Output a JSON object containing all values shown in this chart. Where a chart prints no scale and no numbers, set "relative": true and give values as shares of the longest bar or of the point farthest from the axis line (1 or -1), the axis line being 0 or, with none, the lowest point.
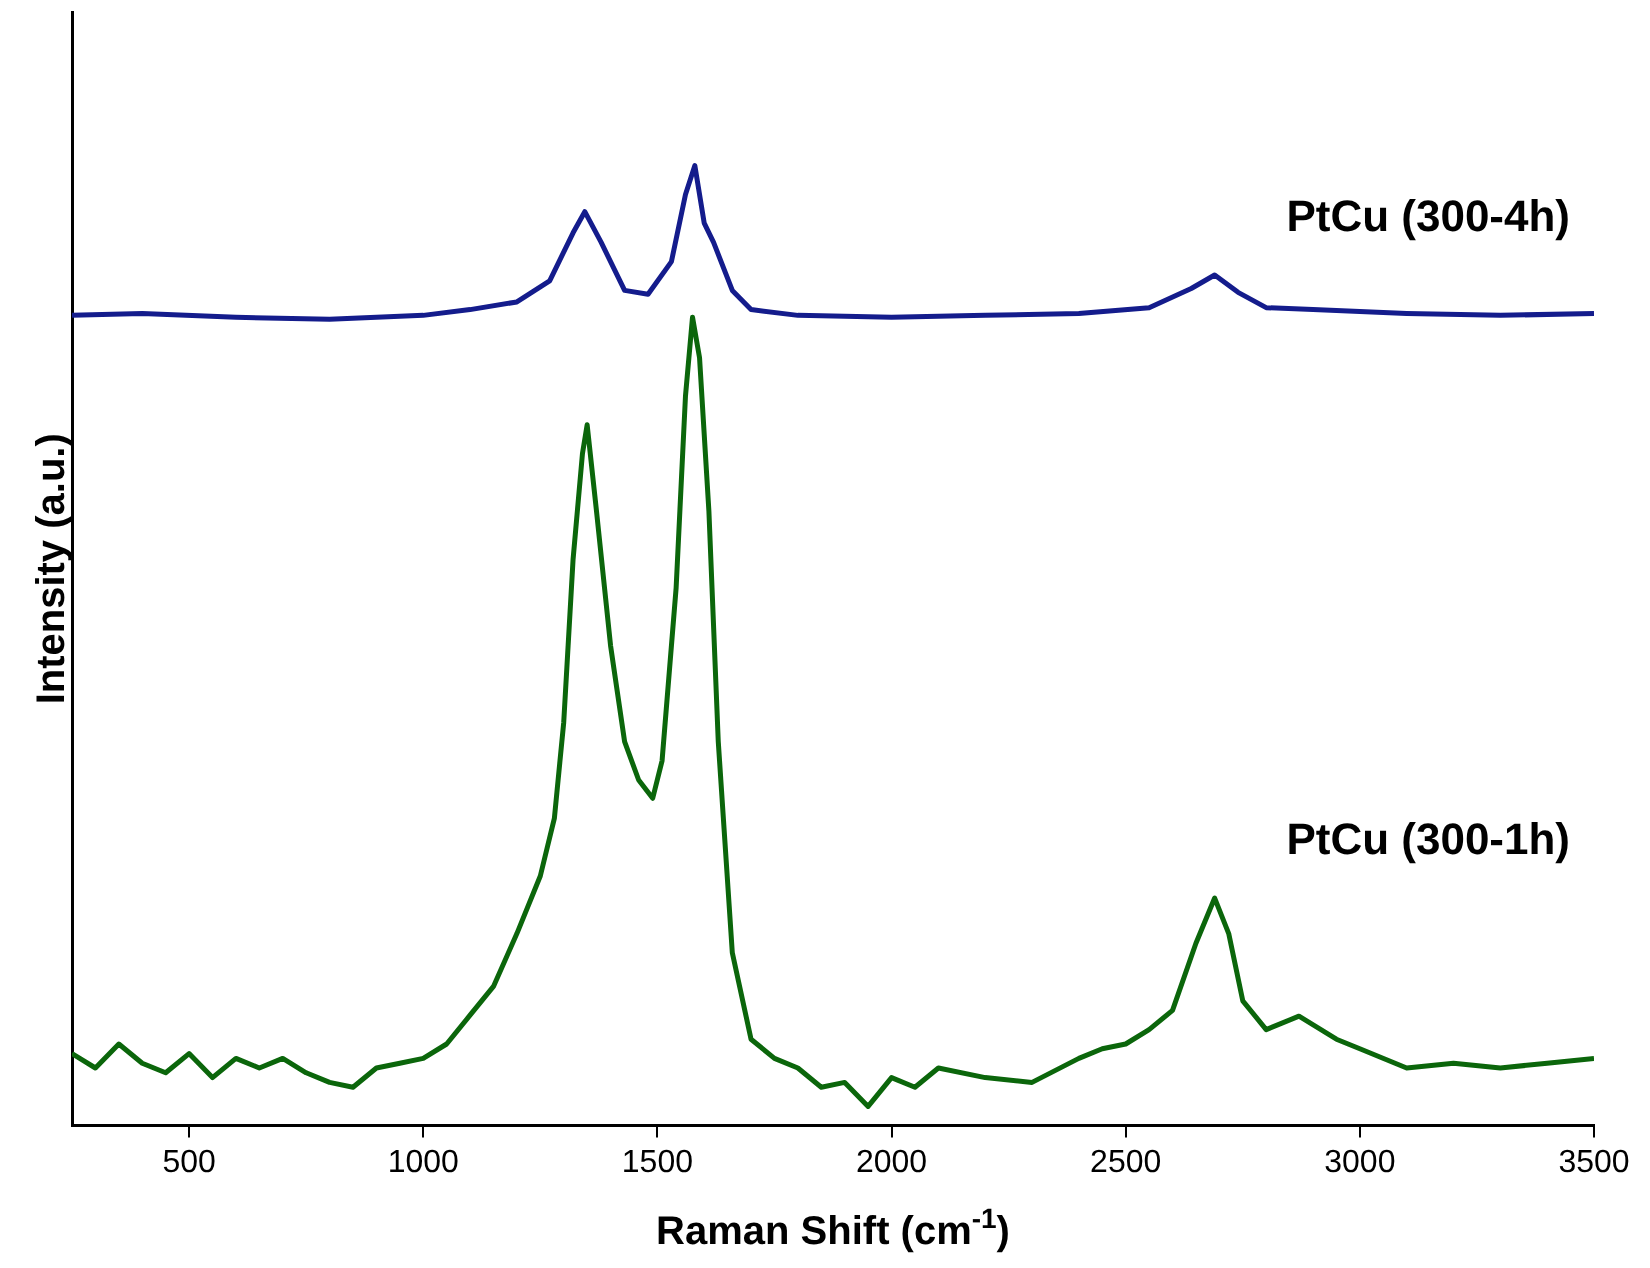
{
  "chart_data": {
    "type": "line",
    "relative": true,
    "xlabel": "Raman Shift (cm$^{-1}$)",
    "ylabel": "Intensity (a.u.)",
    "xlim": [
      250,
      3500
    ],
    "xticks": [
      500,
      1000,
      1500,
      2000,
      2500,
      3000,
      3500
    ],
    "marker": "none",
    "line_style": "solid",
    "series": [
      {
        "name": "PtCu (300-4h)",
        "color": "#141c8c",
        "x": [
          250,
          400,
          600,
          800,
          1000,
          1100,
          1200,
          1270,
          1320,
          1345,
          1380,
          1430,
          1480,
          1530,
          1560,
          1580,
          1600,
          1620,
          1660,
          1700,
          1800,
          2000,
          2200,
          2400,
          2550,
          2640,
          2690,
          2740,
          2800,
          2900,
          3100,
          3300,
          3500
        ],
        "values": [
          0.844,
          0.846,
          0.842,
          0.84,
          0.844,
          0.85,
          0.858,
          0.88,
          0.93,
          0.952,
          0.92,
          0.87,
          0.866,
          0.9,
          0.97,
          1.0,
          0.94,
          0.92,
          0.87,
          0.85,
          0.844,
          0.842,
          0.844,
          0.846,
          0.852,
          0.872,
          0.886,
          0.868,
          0.852,
          0.85,
          0.846,
          0.844,
          0.846
        ]
      },
      {
        "name": "PtCu (300-1h)",
        "color": "#0b660b",
        "x": [
          250,
          300,
          350,
          400,
          450,
          500,
          550,
          600,
          650,
          700,
          750,
          800,
          850,
          900,
          950,
          1000,
          1050,
          1100,
          1150,
          1200,
          1250,
          1280,
          1300,
          1320,
          1340,
          1350,
          1370,
          1400,
          1430,
          1460,
          1490,
          1510,
          1540,
          1560,
          1575,
          1590,
          1610,
          1630,
          1660,
          1700,
          1750,
          1800,
          1850,
          1900,
          1950,
          2000,
          2050,
          2100,
          2200,
          2300,
          2400,
          2450,
          2500,
          2550,
          2600,
          2650,
          2690,
          2720,
          2750,
          2800,
          2870,
          2950,
          3000,
          3100,
          3200,
          3300,
          3400,
          3500
        ],
        "values": [
          0.075,
          0.06,
          0.085,
          0.065,
          0.055,
          0.075,
          0.05,
          0.07,
          0.06,
          0.07,
          0.055,
          0.045,
          0.04,
          0.06,
          0.065,
          0.07,
          0.085,
          0.115,
          0.145,
          0.2,
          0.26,
          0.32,
          0.42,
          0.59,
          0.7,
          0.73,
          0.64,
          0.5,
          0.4,
          0.36,
          0.341,
          0.38,
          0.56,
          0.76,
          0.842,
          0.8,
          0.64,
          0.4,
          0.18,
          0.09,
          0.07,
          0.06,
          0.04,
          0.045,
          0.02,
          0.05,
          0.04,
          0.06,
          0.05,
          0.045,
          0.07,
          0.08,
          0.085,
          0.1,
          0.12,
          0.19,
          0.237,
          0.2,
          0.13,
          0.1,
          0.114,
          0.09,
          0.08,
          0.06,
          0.065,
          0.06,
          0.065,
          0.07
        ]
      }
    ]
  }
}
